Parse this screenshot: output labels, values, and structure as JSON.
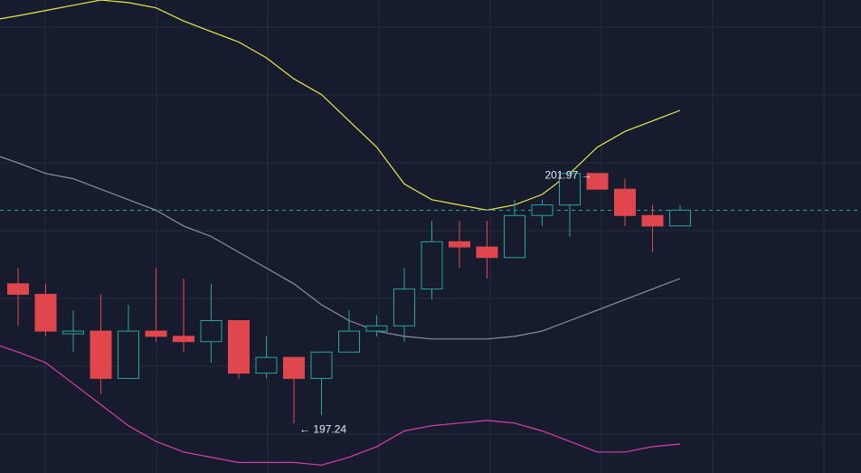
{
  "chart_data": {
    "type": "candlestick",
    "grid": true,
    "colors": {
      "background": "#171b2e",
      "grid": "#262b40",
      "up": "#26a69a",
      "down": "#e0474c",
      "upper_band": "#e8e84a",
      "middle_band": "#8c8f9e",
      "lower_band": "#d93fa8",
      "last_price_line": "#26a69a"
    },
    "ylim": [
      196.3,
      205.3
    ],
    "candles": [
      {
        "o": 199.9,
        "h": 200.2,
        "l": 199.1,
        "c": 199.7
      },
      {
        "o": 199.7,
        "h": 199.9,
        "l": 198.9,
        "c": 199.0
      },
      {
        "o": 199.0,
        "h": 199.4,
        "l": 198.6,
        "c": 199.0
      },
      {
        "o": 199.0,
        "h": 199.7,
        "l": 197.8,
        "c": 198.1
      },
      {
        "o": 198.1,
        "h": 199.5,
        "l": 198.1,
        "c": 199.0
      },
      {
        "o": 199.0,
        "h": 200.2,
        "l": 198.8,
        "c": 198.9
      },
      {
        "o": 198.9,
        "h": 200.0,
        "l": 198.6,
        "c": 198.8
      },
      {
        "o": 198.8,
        "h": 199.9,
        "l": 198.4,
        "c": 199.2
      },
      {
        "o": 199.2,
        "h": 199.2,
        "l": 198.1,
        "c": 198.2
      },
      {
        "o": 198.2,
        "h": 198.9,
        "l": 198.1,
        "c": 198.5
      },
      {
        "o": 198.5,
        "h": 198.5,
        "l": 197.24,
        "c": 198.1
      },
      {
        "o": 198.1,
        "h": 198.6,
        "l": 197.4,
        "c": 198.6
      },
      {
        "o": 198.6,
        "h": 199.4,
        "l": 198.6,
        "c": 199.0
      },
      {
        "o": 199.0,
        "h": 199.3,
        "l": 198.9,
        "c": 199.1
      },
      {
        "o": 199.1,
        "h": 200.2,
        "l": 198.8,
        "c": 199.8
      },
      {
        "o": 199.8,
        "h": 201.1,
        "l": 199.6,
        "c": 200.7
      },
      {
        "o": 200.7,
        "h": 201.1,
        "l": 200.2,
        "c": 200.6
      },
      {
        "o": 200.6,
        "h": 201.1,
        "l": 200.0,
        "c": 200.4
      },
      {
        "o": 200.4,
        "h": 201.5,
        "l": 200.4,
        "c": 201.2
      },
      {
        "o": 201.2,
        "h": 201.5,
        "l": 201.0,
        "c": 201.4
      },
      {
        "o": 201.4,
        "h": 202.0,
        "l": 200.8,
        "c": 202.0
      },
      {
        "o": 202.0,
        "h": 201.97,
        "l": 201.7,
        "c": 201.7
      },
      {
        "o": 201.7,
        "h": 201.9,
        "l": 201.0,
        "c": 201.2
      },
      {
        "o": 201.2,
        "h": 201.4,
        "l": 200.5,
        "c": 201.0
      },
      {
        "o": 201.0,
        "h": 201.4,
        "l": 201.0,
        "c": 201.3
      }
    ],
    "upper_band": [
      205.0,
      205.1,
      205.2,
      205.3,
      205.25,
      205.15,
      204.9,
      204.7,
      204.5,
      204.2,
      203.8,
      203.5,
      203.0,
      202.5,
      201.8,
      201.5,
      201.4,
      201.3,
      201.4,
      201.6,
      202.0,
      202.5,
      202.8,
      203.0,
      203.2
    ],
    "middle_band": [
      202.2,
      202.0,
      201.9,
      201.7,
      201.5,
      201.3,
      201.0,
      200.8,
      200.5,
      200.2,
      199.9,
      199.5,
      199.2,
      199.0,
      198.9,
      198.85,
      198.85,
      198.85,
      198.9,
      199.0,
      199.2,
      199.4,
      199.6,
      199.8,
      200.0
    ],
    "lower_band": [
      198.6,
      198.4,
      198.0,
      197.6,
      197.2,
      196.9,
      196.7,
      196.6,
      196.5,
      196.5,
      196.5,
      196.45,
      196.6,
      196.8,
      197.1,
      197.2,
      197.25,
      197.3,
      197.25,
      197.1,
      196.9,
      196.7,
      196.7,
      196.8,
      196.85
    ],
    "last_price": 201.3,
    "annotations": [
      {
        "text": "201.97 →",
        "candle": 21,
        "value": 201.97,
        "anchor": "end"
      },
      {
        "text": "← 197.24",
        "candle": 10,
        "value": 197.24,
        "anchor": "start"
      }
    ]
  }
}
